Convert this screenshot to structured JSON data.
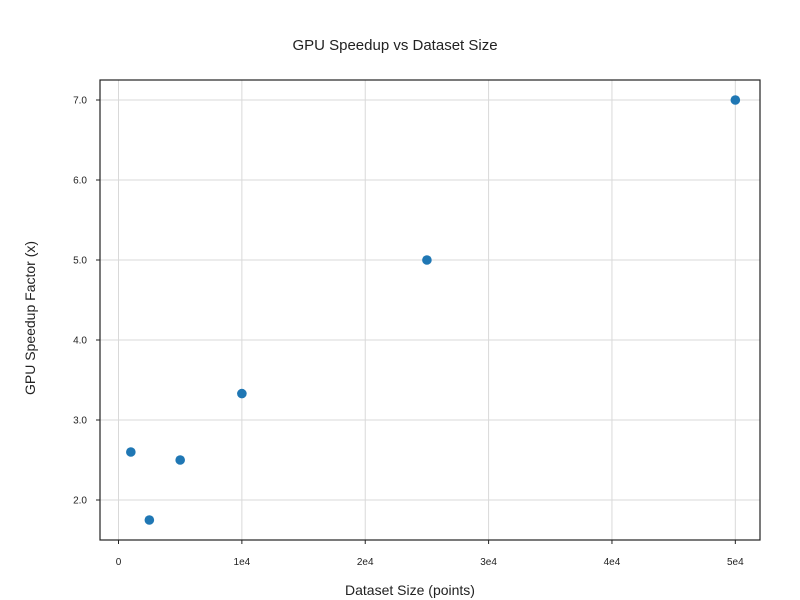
{
  "chart_data": {
    "type": "scatter",
    "title": "GPU Speedup vs Dataset Size",
    "xlabel": "Dataset Size (points)",
    "ylabel": "GPU Speedup Factor (x)",
    "xlim": [
      -1500,
      52000
    ],
    "ylim": [
      1.5,
      7.25
    ],
    "xticks": [
      0,
      10000,
      20000,
      30000,
      40000,
      50000
    ],
    "xtick_labels": [
      "0",
      "1e4",
      "2e4",
      "3e4",
      "4e4",
      "5e4"
    ],
    "yticks": [
      2.0,
      3.0,
      4.0,
      5.0,
      6.0,
      7.0
    ],
    "ytick_labels": [
      "2.0",
      "3.0",
      "4.0",
      "5.0",
      "6.0",
      "7.0"
    ],
    "grid": true,
    "legend": "none",
    "marker_color": "#1f77b4",
    "points": [
      {
        "x": 1000,
        "y": 2.6
      },
      {
        "x": 2500,
        "y": 1.75
      },
      {
        "x": 5000,
        "y": 2.5
      },
      {
        "x": 10000,
        "y": 3.33
      },
      {
        "x": 25000,
        "y": 5.0
      },
      {
        "x": 50000,
        "y": 7.0
      }
    ]
  }
}
